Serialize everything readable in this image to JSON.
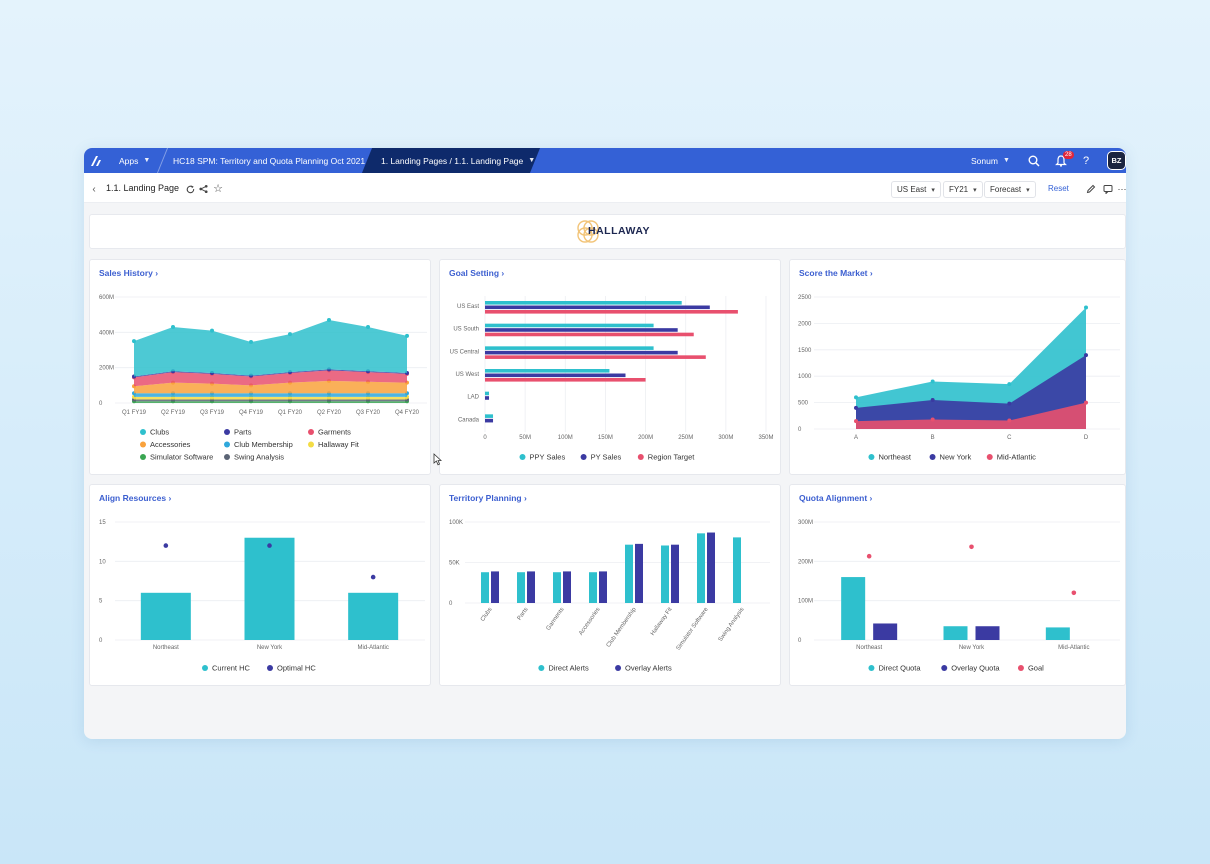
{
  "topbar": {
    "apps_label": "Apps",
    "model_label": "HC18 SPM: Territory and Quota Planning Oct 2021",
    "page_tab_label": "1. Landing Pages / 1.1. Landing Page",
    "workspace_label": "Sonum",
    "notification_count": "28",
    "user_initials": "BZ"
  },
  "subbar": {
    "page_title": "1.1. Landing Page",
    "filters": [
      "US East",
      "FY21",
      "Forecast"
    ],
    "reset_label": "Reset"
  },
  "brand": {
    "name": "HALLAWAY"
  },
  "colors": {
    "teal": "#2ec0cd",
    "indigo": "#3b3aa2",
    "red": "#e8506e",
    "orange": "#f9a23c",
    "blue": "#2fa8dc",
    "yellow": "#f3dc45",
    "green": "#3aa652",
    "slate": "#5b6475",
    "accent": "#3461d6"
  },
  "panels": {
    "sales_history": {
      "title": "Sales History",
      "chart_data": {
        "type": "area",
        "stacked": true,
        "categories": [
          "Q1 FY19",
          "Q2 FY19",
          "Q3 FY19",
          "Q4 FY19",
          "Q1 FY20",
          "Q2 FY20",
          "Q3 FY20",
          "Q4 FY20"
        ],
        "y_ticks": [
          "600M",
          "400M",
          "200M",
          "0"
        ],
        "ylim": [
          0,
          600
        ],
        "series": [
          {
            "name": "Simulator Software",
            "color": "#3aa652",
            "values": [
              10,
              10,
              10,
              10,
              10,
              10,
              10,
              10
            ]
          },
          {
            "name": "Swing Analysis",
            "color": "#5b6475",
            "values": [
              10,
              10,
              10,
              10,
              10,
              10,
              10,
              10
            ]
          },
          {
            "name": "Hallaway Fit",
            "color": "#f3dc45",
            "values": [
              15,
              15,
              15,
              15,
              15,
              15,
              15,
              15
            ]
          },
          {
            "name": "Club Membership",
            "color": "#2fa8dc",
            "values": [
              20,
              20,
              20,
              20,
              20,
              20,
              20,
              20
            ]
          },
          {
            "name": "Accessories",
            "color": "#f9a23c",
            "values": [
              40,
              60,
              55,
              45,
              60,
              70,
              65,
              60
            ]
          },
          {
            "name": "Garments",
            "color": "#e8506e",
            "values": [
              50,
              60,
              55,
              50,
              55,
              60,
              55,
              50
            ]
          },
          {
            "name": "Parts",
            "color": "#3b3aa2",
            "values": [
              5,
              5,
              5,
              5,
              5,
              5,
              5,
              5
            ]
          },
          {
            "name": "Clubs",
            "color": "#2ec0cd",
            "values": [
              200,
              250,
              240,
              190,
              215,
              280,
              250,
              210
            ]
          }
        ],
        "legend": [
          "Clubs",
          "Parts",
          "Garments",
          "Accessories",
          "Club Membership",
          "Hallaway Fit",
          "Simulator Software",
          "Swing Analysis"
        ]
      }
    },
    "goal_setting": {
      "title": "Goal Setting",
      "chart_data": {
        "type": "bar",
        "orientation": "horizontal",
        "categories": [
          "US East",
          "US South",
          "US Central",
          "US West",
          "LAD",
          "Canada"
        ],
        "x_ticks": [
          "0",
          "50M",
          "100M",
          "150M",
          "200M",
          "250M",
          "300M",
          "350M"
        ],
        "xlim": [
          0,
          350
        ],
        "series": [
          {
            "name": "PPY Sales",
            "color": "#2ec0cd",
            "values": [
              245,
              210,
              210,
              155,
              5,
              10
            ]
          },
          {
            "name": "PY Sales",
            "color": "#3b3aa2",
            "values": [
              280,
              240,
              240,
              175,
              5,
              10
            ]
          },
          {
            "name": "Region Target",
            "color": "#e8506e",
            "values": [
              315,
              260,
              275,
              200,
              0,
              0
            ]
          }
        ]
      }
    },
    "score_market": {
      "title": "Score the Market",
      "chart_data": {
        "type": "area",
        "stacked": false,
        "categories": [
          "A",
          "B",
          "C",
          "D"
        ],
        "y_ticks": [
          "2500",
          "2000",
          "1500",
          "1000",
          "500",
          "0"
        ],
        "ylim": [
          0,
          2500
        ],
        "series": [
          {
            "name": "Northeast",
            "color": "#2ec0cd",
            "values": [
              600,
              900,
              850,
              2300
            ]
          },
          {
            "name": "New York",
            "color": "#3b3aa2",
            "values": [
              400,
              550,
              480,
              1400
            ]
          },
          {
            "name": "Mid-Atlantic",
            "color": "#e8506e",
            "values": [
              150,
              180,
              160,
              500
            ]
          }
        ]
      }
    },
    "align_resources": {
      "title": "Align Resources",
      "chart_data": {
        "type": "bar",
        "categories": [
          "Northeast",
          "New York",
          "Mid-Atlantic"
        ],
        "y_ticks": [
          "15",
          "10",
          "5",
          "0"
        ],
        "ylim": [
          0,
          15
        ],
        "series": [
          {
            "name": "Current HC",
            "color": "#2ec0cd",
            "values": [
              6,
              13,
              6
            ]
          },
          {
            "name": "Optimal HC",
            "color": "#3b3aa2",
            "values": [
              12,
              12,
              8
            ],
            "marker": "dot"
          }
        ]
      }
    },
    "territory_planning": {
      "title": "Territory Planning",
      "chart_data": {
        "type": "bar",
        "categories": [
          "Clubs",
          "Parts",
          "Garments",
          "Accessories",
          "Club Membership",
          "Hallaway Fit",
          "Simulator Software",
          "Swing Analysis"
        ],
        "y_ticks": [
          "100K",
          "50K",
          "0"
        ],
        "ylim": [
          0,
          100
        ],
        "series": [
          {
            "name": "Direct Alerts",
            "color": "#2ec0cd",
            "values": [
              38,
              38,
              38,
              38,
              72,
              71,
              86,
              81
            ]
          },
          {
            "name": "Overlay Alerts",
            "color": "#3b3aa2",
            "values": [
              39,
              39,
              39,
              39,
              73,
              72,
              87,
              0
            ]
          }
        ]
      }
    },
    "quota_alignment": {
      "title": "Quota Alignment",
      "chart_data": {
        "type": "bar",
        "categories": [
          "Northeast",
          "New York",
          "Mid-Atlantic"
        ],
        "y_ticks": [
          "300M",
          "200M",
          "100M",
          "0"
        ],
        "ylim": [
          0,
          300
        ],
        "series": [
          {
            "name": "Direct Quota",
            "color": "#2ec0cd",
            "values": [
              160,
              35,
              32
            ]
          },
          {
            "name": "Overlay Quota",
            "color": "#3b3aa2",
            "values": [
              42,
              35,
              0
            ]
          },
          {
            "name": "Goal",
            "color": "#e8506e",
            "values": [
              213,
              237,
              120
            ],
            "marker": "dot"
          }
        ]
      }
    }
  }
}
